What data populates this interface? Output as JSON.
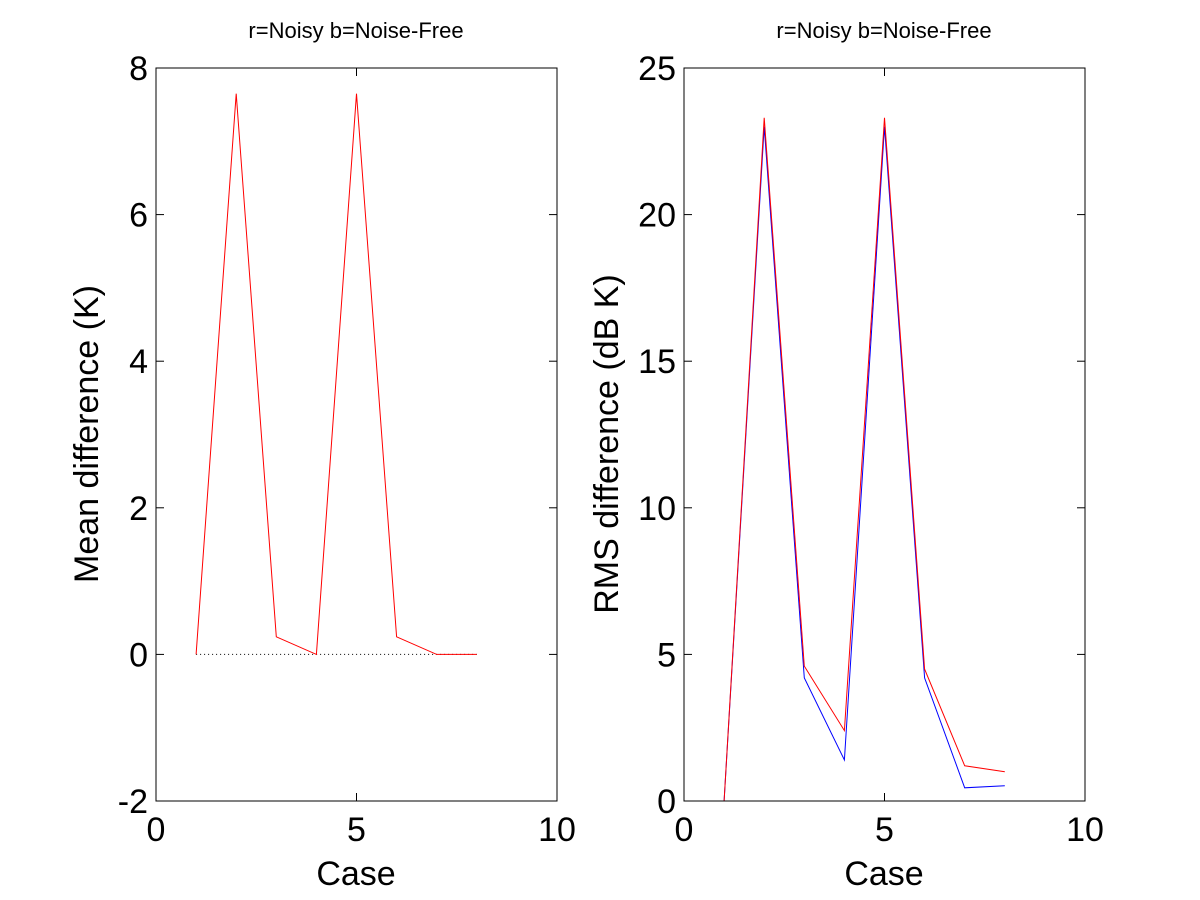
{
  "chart_data": [
    {
      "type": "line",
      "title": "r=Noisy  b=Noise-Free",
      "xlabel": "Case",
      "ylabel": "Mean difference (K)",
      "xlim": [
        0,
        10
      ],
      "ylim": [
        -2,
        8
      ],
      "xticks": [
        "0",
        "5",
        "10"
      ],
      "yticks": [
        "-2",
        "0",
        "2",
        "4",
        "6",
        "8"
      ],
      "x": [
        1,
        2,
        3,
        4,
        5,
        6,
        7,
        8
      ],
      "series": [
        {
          "values": [
            0,
            0,
            0,
            0,
            0,
            0,
            0,
            0
          ],
          "color": "#000000",
          "dash": "dotted"
        },
        {
          "values": [
            0,
            7.65,
            0.24,
            0,
            7.65,
            0.24,
            0,
            0
          ],
          "color": "#ff0000",
          "dash": "solid"
        }
      ],
      "grid": false
    },
    {
      "type": "line",
      "title": "r=Noisy  b=Noise-Free",
      "xlabel": "Case",
      "ylabel": "RMS difference (dB K)",
      "xlim": [
        0,
        10
      ],
      "ylim": [
        0,
        25
      ],
      "xticks": [
        "0",
        "5",
        "10"
      ],
      "yticks": [
        "0",
        "5",
        "10",
        "15",
        "20",
        "25"
      ],
      "x": [
        1,
        2,
        3,
        4,
        5,
        6,
        7,
        8
      ],
      "series": [
        {
          "values": [
            0,
            23.0,
            4.2,
            1.4,
            23.0,
            4.2,
            0.45,
            0.52
          ],
          "color": "#0000ff",
          "dash": "solid"
        },
        {
          "values": [
            0,
            23.3,
            4.6,
            2.4,
            23.3,
            4.5,
            1.2,
            1.0
          ],
          "color": "#ff0000",
          "dash": "solid"
        }
      ],
      "grid": false
    }
  ]
}
